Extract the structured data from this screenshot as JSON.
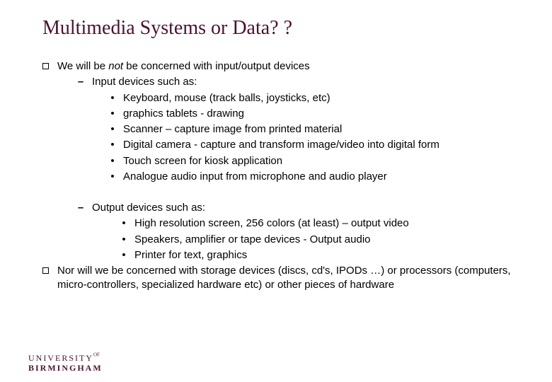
{
  "colors": {
    "accent": "#4a1230",
    "text": "#000000",
    "bg": "#ffffff"
  },
  "fonts": {
    "title_family": "Times New Roman",
    "body_family": "Arial",
    "title_size_pt": 28,
    "body_size_pt": 15
  },
  "title": "Multimedia Systems or Data? ?",
  "bullets": {
    "b1": {
      "pre": "We will be ",
      "em": "not",
      "post": " be concerned with input/output devices"
    },
    "b1_1": "Input devices such as:",
    "b1_1_items": [
      "Keyboard, mouse (track balls, joysticks, etc)",
      "graphics tablets - drawing",
      "Scanner – capture image from printed material",
      "Digital camera - capture and transform image/video into digital form",
      "Touch screen for kiosk application",
      "Analogue audio input from microphone and audio player"
    ],
    "b1_2": "Output devices such as:",
    "b1_2_items": [
      "High resolution screen, 256 colors (at least) – output video",
      "Speakers, amplifier or tape devices - Output audio",
      "Printer for  text, graphics"
    ],
    "b2": "Nor will we be concerned with storage devices (discs, cd's, IPODs …) or processors (computers, micro-controllers, specialized hardware etc) or other pieces of hardware"
  },
  "logo": {
    "line1_a": "UNIVERSITY",
    "line1_b": "OF",
    "line2": "BIRMINGHAM"
  }
}
